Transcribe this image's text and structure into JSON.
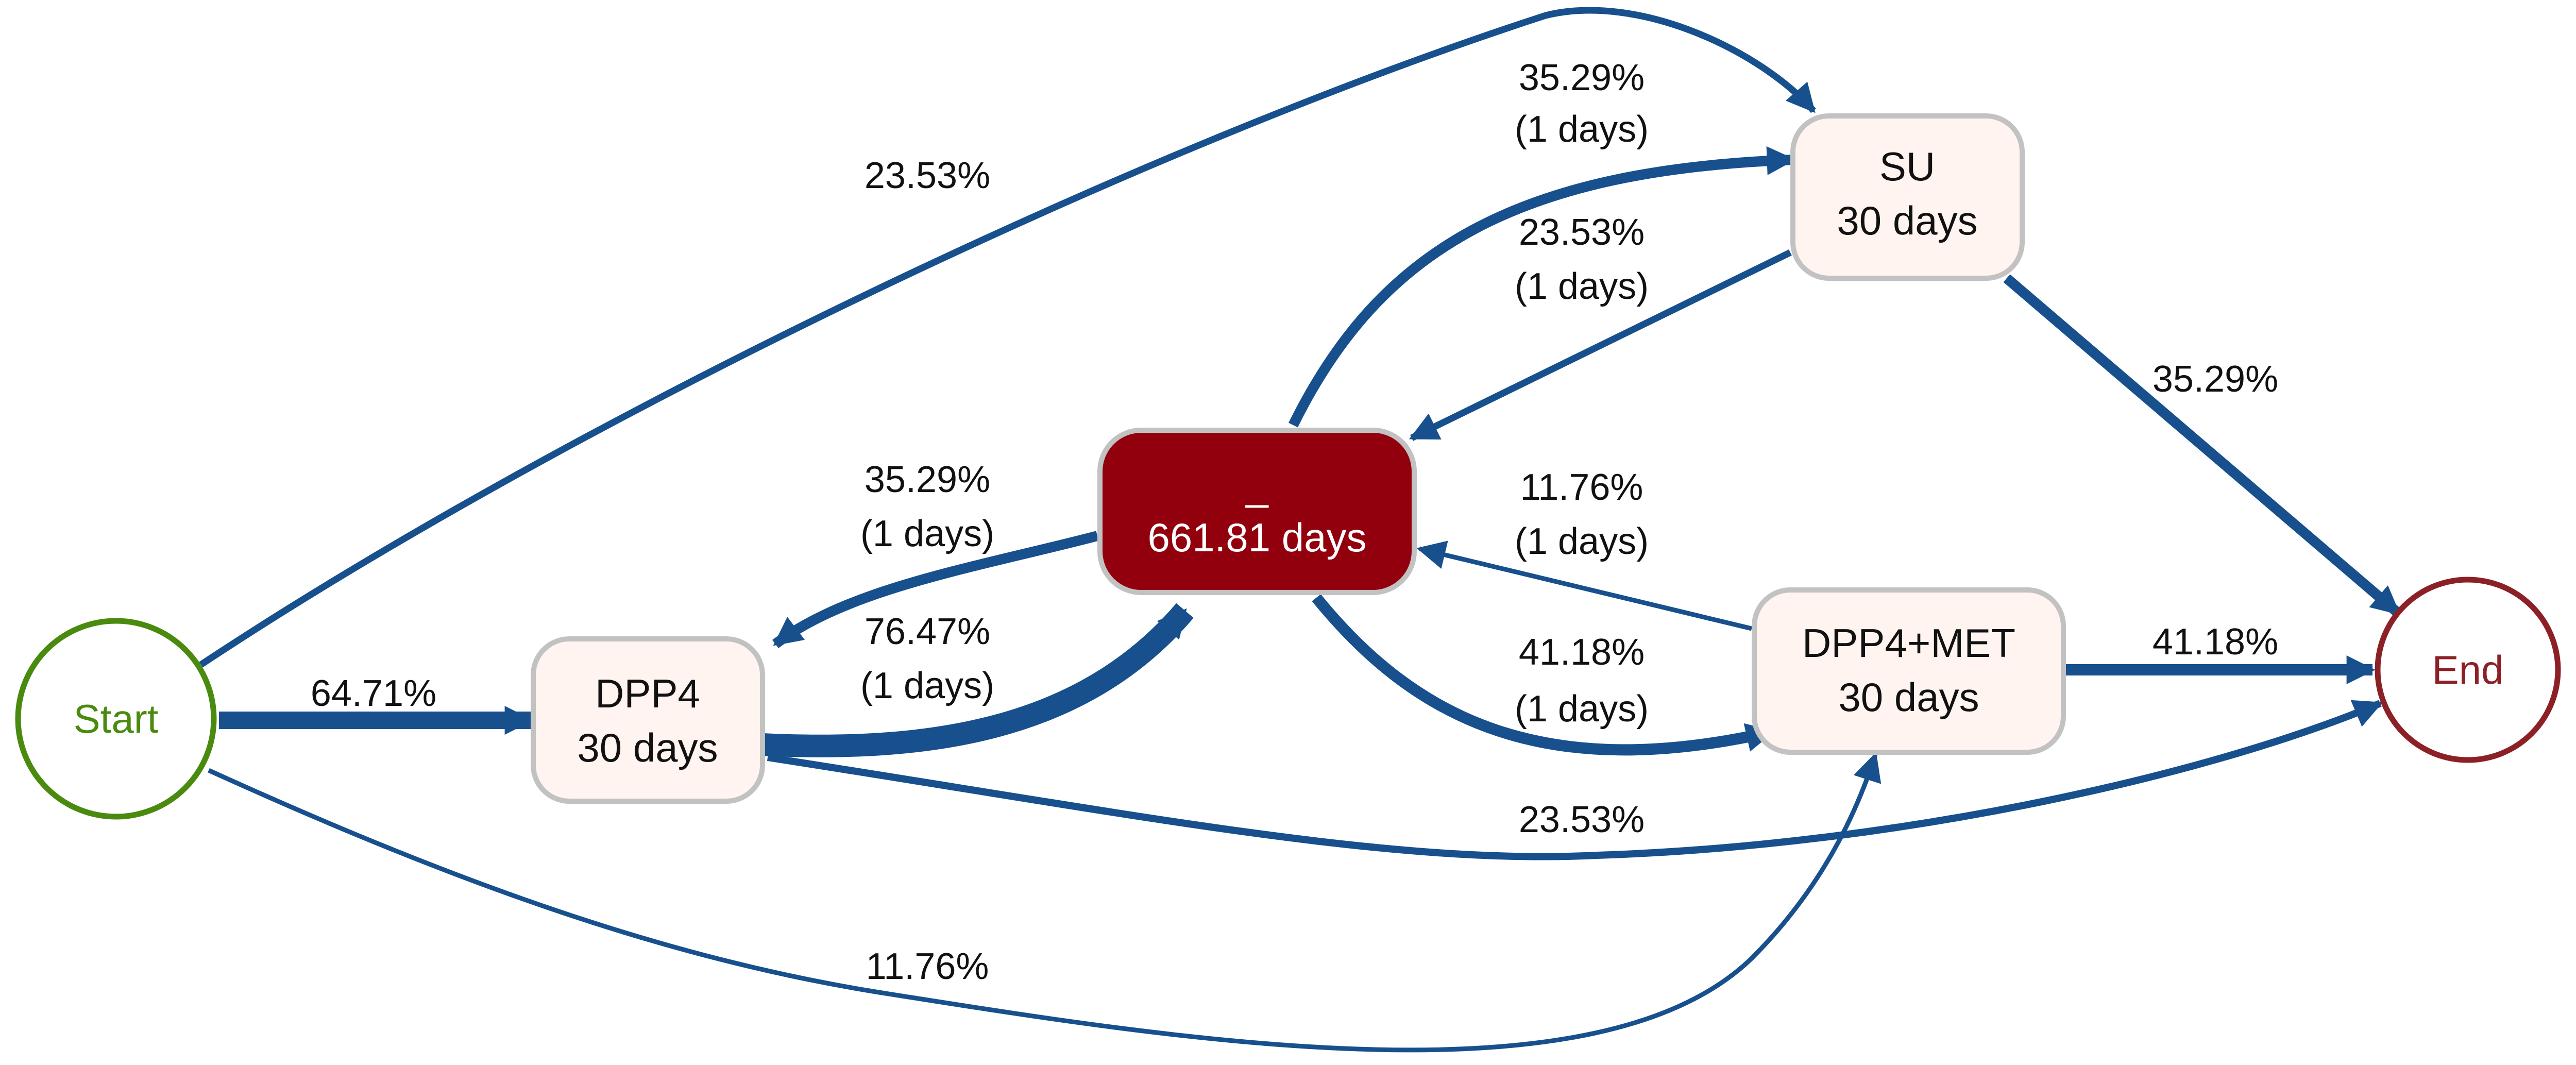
{
  "colors": {
    "edge": "#17508d",
    "start_stroke": "#4a8a0f",
    "start_text": "#4a8a0f",
    "end_stroke": "#8b2126",
    "end_text": "#8b2126",
    "task_fill": "#fff4ef",
    "task_stroke": "#c2c2c2",
    "gap_fill": "#92000e",
    "gap_stroke": "#c2c2c2"
  },
  "nodes": {
    "start": {
      "label": "Start"
    },
    "end": {
      "label": "End"
    },
    "dpp4": {
      "name": "DPP4",
      "duration": "30 days"
    },
    "su": {
      "name": "SU",
      "duration": "30 days"
    },
    "dpp4met": {
      "name": "DPP4+MET",
      "duration": "30 days"
    },
    "gap": {
      "name": "_",
      "duration": "661.81 days"
    }
  },
  "edges": {
    "start_dpp4": {
      "pct": "64.71%"
    },
    "start_su": {
      "pct": "23.53%"
    },
    "start_dpp4met": {
      "pct": "11.76%"
    },
    "dpp4_gap": {
      "pct": "76.47%",
      "time": "(1 days)"
    },
    "gap_dpp4": {
      "pct": "35.29%",
      "time": "(1 days)"
    },
    "dpp4_end": {
      "pct": "23.53%"
    },
    "gap_su": {
      "pct": "35.29%",
      "time": "(1 days)"
    },
    "su_gap": {
      "pct": "23.53%",
      "time": "(1 days)"
    },
    "gap_dpp4met": {
      "pct": "41.18%",
      "time": "(1 days)"
    },
    "dpp4met_gap": {
      "pct": "11.76%",
      "time": "(1 days)"
    },
    "su_end": {
      "pct": "35.29%"
    },
    "dpp4met_end": {
      "pct": "41.18%"
    }
  }
}
